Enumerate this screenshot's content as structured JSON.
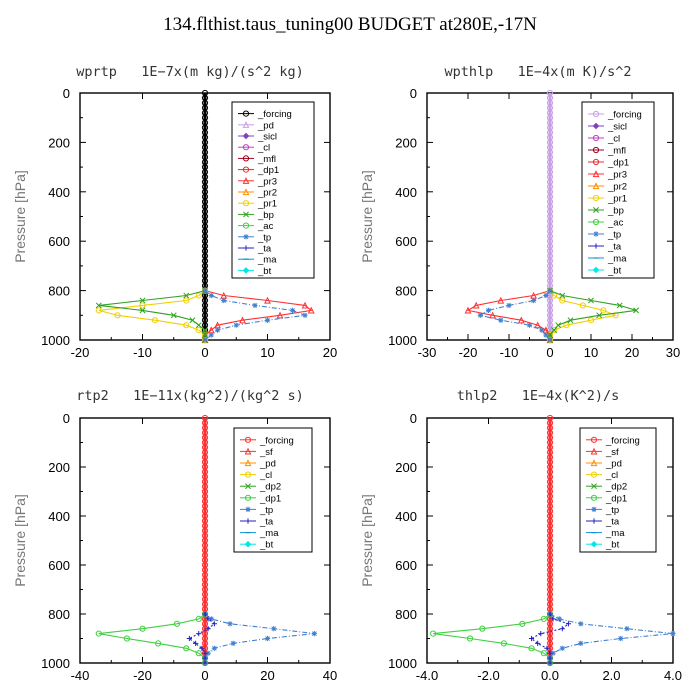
{
  "title": "134.flthist.taus_tuning00  BUDGET at280E,-17N",
  "chart_data": [
    {
      "type": "line",
      "title": "wprtp   1E−7x(m kg)/(s^2 kg)",
      "ylabel": "Pressure [hPa]",
      "xlabel": "",
      "xlim": [
        -20,
        20
      ],
      "ylim": [
        1000,
        0
      ],
      "xticks": [
        -20,
        -10,
        0,
        10,
        20
      ],
      "xtick_labels": [
        "-20",
        "-10",
        "0",
        "10",
        "20"
      ],
      "yticks": [
        0,
        200,
        400,
        600,
        800,
        1000
      ],
      "ytick_labels": [
        "0",
        "200",
        "400",
        "600",
        "800",
        "1000"
      ],
      "legend_position": "top-right",
      "pressure": [
        800,
        820,
        840,
        860,
        880,
        900,
        920,
        940,
        960,
        980,
        1000
      ],
      "series": [
        {
          "name": "_forcing",
          "color": "#000000",
          "marker": "circle",
          "values": [
            0,
            0,
            0,
            0,
            0,
            0,
            0,
            0,
            0,
            0,
            0
          ]
        },
        {
          "name": "_pd",
          "color": "#c8a0e6",
          "marker": "triangle",
          "values": [
            0,
            0,
            0,
            0,
            0,
            0,
            0,
            0,
            0,
            0,
            0
          ]
        },
        {
          "name": "_sicl",
          "color": "#8040c0",
          "marker": "diamond",
          "values": [
            0,
            0,
            0,
            0,
            0,
            0,
            0,
            0,
            0,
            0,
            0
          ]
        },
        {
          "name": "_cl",
          "color": "#c040c0",
          "marker": "circle",
          "values": [
            0,
            0,
            0,
            0,
            0,
            0,
            0,
            0,
            0,
            0,
            0
          ]
        },
        {
          "name": "_mfl",
          "color": "#a0001e",
          "marker": "circle",
          "values": [
            0,
            0,
            0,
            0,
            0,
            0,
            0,
            0,
            0,
            0,
            0
          ]
        },
        {
          "name": "_dp1",
          "color": "#e03030",
          "marker": "circle",
          "values": [
            0,
            0,
            0,
            0,
            0,
            0,
            0,
            0,
            0,
            0,
            0
          ]
        },
        {
          "name": "_pr3",
          "color": "#ff3030",
          "marker": "triangle",
          "values": [
            0,
            3,
            10,
            16,
            17,
            12,
            6,
            2,
            1,
            0,
            0
          ]
        },
        {
          "name": "_pr2",
          "color": "#ff9000",
          "marker": "triangle",
          "values": [
            0,
            0,
            0,
            0,
            0,
            0,
            0,
            0,
            0,
            0,
            0
          ]
        },
        {
          "name": "_pr1",
          "color": "#f0d000",
          "marker": "circle",
          "values": [
            0,
            -1,
            -3,
            -10,
            -17,
            -14,
            -8,
            -3,
            -1,
            0,
            0
          ]
        },
        {
          "name": "_bp",
          "color": "#30a020",
          "marker": "x",
          "values": [
            0,
            -3,
            -10,
            -17,
            -10,
            -5,
            -2,
            -1,
            0,
            0,
            0
          ]
        },
        {
          "name": "_ac",
          "color": "#40d040",
          "marker": "circle",
          "values": [
            0,
            0,
            0,
            0,
            0,
            0,
            0,
            0,
            0,
            0,
            0
          ]
        },
        {
          "name": "_tp",
          "color": "#4080d0",
          "marker": "star",
          "values": [
            0,
            1,
            3,
            8,
            14,
            16,
            10,
            5,
            2,
            1,
            0
          ]
        },
        {
          "name": "_ta",
          "color": "#2020c0",
          "marker": "plus",
          "values": [
            0,
            0,
            0,
            0,
            0,
            0,
            0,
            0,
            0,
            0,
            0
          ]
        },
        {
          "name": "_ma",
          "color": "#1090d0",
          "marker": "dash",
          "values": [
            0,
            0,
            0,
            0,
            0,
            0,
            0,
            0,
            0,
            0,
            0
          ]
        },
        {
          "name": "_bt",
          "color": "#00e8e8",
          "marker": "diamond",
          "values": [
            0,
            0,
            0,
            0,
            0,
            0,
            0,
            0,
            0,
            0,
            0
          ]
        }
      ]
    },
    {
      "type": "line",
      "title": "wpthlp   1E−4x(m K)/s^2",
      "ylabel": "Pressure [hPa]",
      "xlabel": "",
      "xlim": [
        -30,
        30
      ],
      "ylim": [
        1000,
        0
      ],
      "xticks": [
        -30,
        -20,
        -10,
        0,
        10,
        20,
        30
      ],
      "xtick_labels": [
        "-30",
        "-20",
        "-10",
        "0",
        "10",
        "20",
        "30"
      ],
      "yticks": [
        0,
        200,
        400,
        600,
        800,
        1000
      ],
      "ytick_labels": [
        "0",
        "200",
        "400",
        "600",
        "800",
        "1000"
      ],
      "legend_position": "top-right",
      "pressure": [
        800,
        820,
        840,
        860,
        880,
        900,
        920,
        940,
        960,
        980,
        1000
      ],
      "series": [
        {
          "name": "_forcing",
          "color": "#c8a0e6",
          "marker": "circle",
          "values": [
            0,
            0,
            0,
            0,
            0,
            0,
            0,
            0,
            0,
            0,
            0
          ]
        },
        {
          "name": "_sicl",
          "color": "#8040c0",
          "marker": "diamond",
          "values": [
            0,
            0,
            0,
            0,
            0,
            0,
            0,
            0,
            0,
            0,
            0
          ]
        },
        {
          "name": "_cl",
          "color": "#c040c0",
          "marker": "circle",
          "values": [
            0,
            0,
            0,
            0,
            0,
            0,
            0,
            0,
            0,
            0,
            0
          ]
        },
        {
          "name": "_mfl",
          "color": "#a0001e",
          "marker": "circle",
          "values": [
            0,
            0,
            0,
            0,
            0,
            0,
            0,
            0,
            0,
            0,
            0
          ]
        },
        {
          "name": "_dp1",
          "color": "#e03030",
          "marker": "circle",
          "values": [
            0,
            0,
            0,
            0,
            0,
            0,
            0,
            0,
            0,
            0,
            0
          ]
        },
        {
          "name": "_pr3",
          "color": "#ff3030",
          "marker": "triangle",
          "values": [
            0,
            -4,
            -12,
            -18,
            -20,
            -14,
            -7,
            -3,
            -1,
            0,
            0
          ]
        },
        {
          "name": "_pr2",
          "color": "#ff9000",
          "marker": "triangle",
          "values": [
            0,
            0,
            0,
            0,
            0,
            0,
            0,
            0,
            0,
            0,
            0
          ]
        },
        {
          "name": "_pr1",
          "color": "#f0d000",
          "marker": "circle",
          "values": [
            0,
            1,
            3,
            8,
            13,
            16,
            10,
            4,
            1,
            0,
            0
          ]
        },
        {
          "name": "_bp",
          "color": "#30a020",
          "marker": "x",
          "values": [
            0,
            3,
            10,
            17,
            21,
            12,
            5,
            2,
            1,
            0,
            0
          ]
        },
        {
          "name": "_ac",
          "color": "#40d040",
          "marker": "circle",
          "values": [
            0,
            0,
            0,
            0,
            0,
            0,
            0,
            0,
            0,
            0,
            0
          ]
        },
        {
          "name": "_tp",
          "color": "#4080d0",
          "marker": "star",
          "values": [
            0,
            -1,
            -4,
            -10,
            -15,
            -17,
            -12,
            -5,
            -2,
            -1,
            0
          ]
        },
        {
          "name": "_ta",
          "color": "#2020c0",
          "marker": "plus",
          "values": [
            0,
            0,
            0,
            0,
            0,
            0,
            0,
            0,
            0,
            0,
            0
          ]
        },
        {
          "name": "_ma",
          "color": "#1090d0",
          "marker": "dash",
          "values": [
            0,
            0,
            0,
            0,
            0,
            0,
            0,
            0,
            0,
            0,
            0
          ]
        },
        {
          "name": "_bt",
          "color": "#00e8e8",
          "marker": "diamond",
          "values": [
            0,
            0,
            0,
            0,
            0,
            0,
            0,
            0,
            0,
            0,
            0
          ]
        }
      ]
    },
    {
      "type": "line",
      "title": "rtp2   1E−11x(kg^2)/(kg^2 s)",
      "ylabel": "Pressure [hPa]",
      "xlabel": "",
      "xlim": [
        -40,
        40
      ],
      "ylim": [
        1000,
        0
      ],
      "xticks": [
        -40,
        -20,
        0,
        20,
        40
      ],
      "xtick_labels": [
        "-40",
        "-20",
        "0",
        "20",
        "40"
      ],
      "yticks": [
        0,
        200,
        400,
        600,
        800,
        1000
      ],
      "ytick_labels": [
        "0",
        "200",
        "400",
        "600",
        "800",
        "1000"
      ],
      "legend_position": "top-right",
      "pressure": [
        800,
        820,
        840,
        860,
        880,
        900,
        920,
        940,
        960,
        980,
        1000
      ],
      "series": [
        {
          "name": "_forcing",
          "color": "#ff3030",
          "marker": "circle",
          "values": [
            0,
            0,
            0,
            0,
            0,
            0,
            0,
            0,
            0,
            0,
            0
          ]
        },
        {
          "name": "_sf",
          "color": "#ff3030",
          "marker": "triangle",
          "values": [
            0,
            0,
            0,
            0,
            0,
            0,
            0,
            0,
            0,
            0,
            0
          ]
        },
        {
          "name": "_pd",
          "color": "#ff9000",
          "marker": "triangle",
          "values": [
            0,
            0,
            0,
            0,
            0,
            0,
            0,
            0,
            0,
            0,
            0
          ]
        },
        {
          "name": "_cl",
          "color": "#f0d000",
          "marker": "circle",
          "values": [
            0,
            0,
            0,
            0,
            0,
            0,
            0,
            0,
            0,
            0,
            0
          ]
        },
        {
          "name": "_dp2",
          "color": "#30a020",
          "marker": "x",
          "values": [
            0,
            0,
            0,
            0,
            0,
            0,
            0,
            0,
            0,
            0,
            0
          ]
        },
        {
          "name": "_dp1",
          "color": "#40d040",
          "marker": "circle",
          "values": [
            0,
            -2,
            -9,
            -20,
            -34,
            -25,
            -15,
            -6,
            -2,
            0,
            0
          ]
        },
        {
          "name": "_tp",
          "color": "#4080d0",
          "marker": "star",
          "values": [
            0,
            2,
            8,
            22,
            35,
            20,
            9,
            3,
            1,
            0,
            0
          ]
        },
        {
          "name": "_ta",
          "color": "#2020c0",
          "marker": "plus",
          "values": [
            0,
            1,
            3,
            1,
            -2,
            -5,
            -3,
            -1,
            0,
            0,
            0
          ]
        },
        {
          "name": "_ma",
          "color": "#1090d0",
          "marker": "dash",
          "values": [
            0,
            0,
            0,
            0,
            0,
            0,
            0,
            0,
            0,
            0,
            0
          ]
        },
        {
          "name": "_bt",
          "color": "#00e8e8",
          "marker": "diamond",
          "values": [
            0,
            0,
            0,
            0,
            0,
            0,
            0,
            0,
            0,
            0,
            0
          ]
        }
      ]
    },
    {
      "type": "line",
      "title": "thlp2   1E−4x(K^2)/s",
      "ylabel": "Pressure [hPa]",
      "xlabel": "",
      "xlim": [
        -4,
        4
      ],
      "ylim": [
        1000,
        0
      ],
      "xticks": [
        -4,
        -2,
        0,
        2,
        4
      ],
      "xtick_labels": [
        "-4.0",
        "-2.0",
        "0.0",
        "2.0",
        "4.0"
      ],
      "yticks": [
        0,
        200,
        400,
        600,
        800,
        1000
      ],
      "ytick_labels": [
        "0",
        "200",
        "400",
        "600",
        "800",
        "1000"
      ],
      "legend_position": "top-right",
      "pressure": [
        800,
        820,
        840,
        860,
        880,
        900,
        920,
        940,
        960,
        980,
        1000
      ],
      "series": [
        {
          "name": "_forcing",
          "color": "#ff3030",
          "marker": "circle",
          "values": [
            0,
            0,
            0,
            0,
            0,
            0,
            0,
            0,
            0,
            0,
            0
          ]
        },
        {
          "name": "_sf",
          "color": "#ff3030",
          "marker": "triangle",
          "values": [
            0,
            0,
            0,
            0,
            0,
            0,
            0,
            0,
            0,
            0,
            0
          ]
        },
        {
          "name": "_pd",
          "color": "#ff9000",
          "marker": "triangle",
          "values": [
            0,
            0,
            0,
            0,
            0,
            0,
            0,
            0,
            0,
            0,
            0
          ]
        },
        {
          "name": "_cl",
          "color": "#f0d000",
          "marker": "circle",
          "values": [
            0,
            0,
            0,
            0,
            0,
            0,
            0,
            0,
            0,
            0,
            0
          ]
        },
        {
          "name": "_dp2",
          "color": "#30a020",
          "marker": "x",
          "values": [
            0,
            0,
            0,
            0,
            0,
            0,
            0,
            0,
            0,
            0,
            0
          ]
        },
        {
          "name": "_dp1",
          "color": "#40d040",
          "marker": "circle",
          "values": [
            0,
            -0.2,
            -0.9,
            -2.2,
            -3.8,
            -2.6,
            -1.5,
            -0.6,
            -0.2,
            0,
            0
          ]
        },
        {
          "name": "_tp",
          "color": "#4080d0",
          "marker": "star",
          "values": [
            0,
            0.3,
            1.0,
            2.5,
            4.0,
            2.3,
            1.0,
            0.4,
            0.1,
            0,
            0
          ]
        },
        {
          "name": "_ta",
          "color": "#2020c0",
          "marker": "plus",
          "values": [
            0,
            0.1,
            0.6,
            0.4,
            -0.3,
            -0.6,
            -0.4,
            -0.1,
            0,
            0,
            0
          ]
        },
        {
          "name": "_ma",
          "color": "#1090d0",
          "marker": "dash",
          "values": [
            0,
            0,
            0,
            0,
            0,
            0,
            0,
            0,
            0,
            0,
            0
          ]
        },
        {
          "name": "_bt",
          "color": "#00e8e8",
          "marker": "diamond",
          "values": [
            0,
            0,
            0,
            0,
            0,
            0,
            0,
            0,
            0,
            0,
            0
          ]
        }
      ]
    }
  ]
}
